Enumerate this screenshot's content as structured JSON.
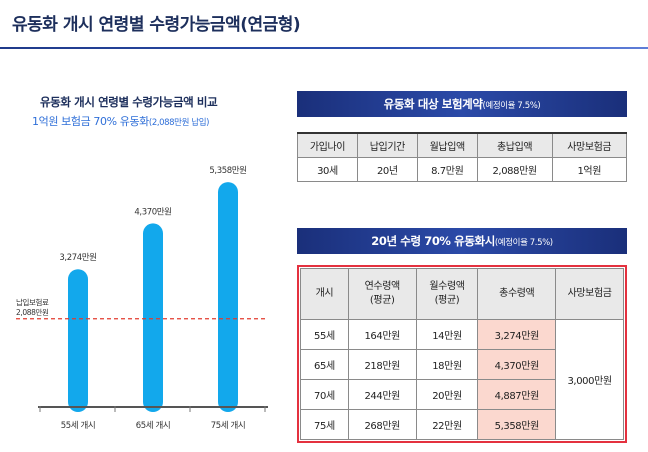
{
  "page_title": "유동화 개시 연령별 수령가능금액(연금형)",
  "chart_data": {
    "type": "bar",
    "title": "유동화 개시 연령별 수령가능금액 비교",
    "subtitle_main": "1억원 보험금 70% 유동화",
    "subtitle_small": "(2,088만원 납입)",
    "categories": [
      "55세 개시",
      "65세 개시",
      "75세 개시"
    ],
    "values": [
      3274,
      4370,
      5358
    ],
    "value_labels": [
      "3,274만원",
      "4,370만원",
      "5,358만원"
    ],
    "unit": "만원",
    "ylim": [
      0,
      5600
    ],
    "reference_line": {
      "value": 2088,
      "label_line1": "납입보험료",
      "label_line2": "2,088만원"
    },
    "colors": {
      "bar": "#12a8ec",
      "reference": "#e23b2e"
    }
  },
  "contract": {
    "banner_main": "유동화 대상 보험계약",
    "banner_small": "(예정이율 7.5%)",
    "headers": [
      "가입나이",
      "납입기간",
      "월납입액",
      "총납입액",
      "사망보험금"
    ],
    "values": [
      "30세",
      "20년",
      "8.7만원",
      "2,088만원",
      "1억원"
    ]
  },
  "payout": {
    "banner_main": "20년 수령 70% 유동화시",
    "banner_small": "(예정이율 7.5%)",
    "headers": [
      "개시",
      "연수령액\n(평균)",
      "월수령액\n(평균)",
      "총수령액",
      "사망보험금"
    ],
    "rows": [
      [
        "55세",
        "164만원",
        "14만원",
        "3,274만원"
      ],
      [
        "65세",
        "218만원",
        "18만원",
        "4,370만원"
      ],
      [
        "70세",
        "244만원",
        "20만원",
        "4,887만원"
      ],
      [
        "75세",
        "268만원",
        "22만원",
        "5,358만원"
      ]
    ],
    "death_benefit": "3,000만원"
  }
}
